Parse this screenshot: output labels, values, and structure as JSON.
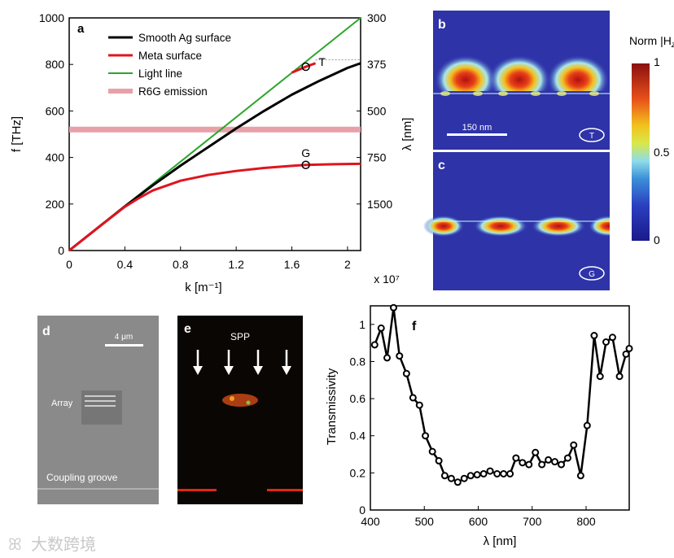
{
  "chart_data": [
    {
      "panel": "a",
      "type": "line",
      "xlabel": "k [m⁻¹]",
      "x_multiplier": "x 10⁷",
      "ylabel": "f [THz]",
      "ylabel_right": "λ [nm]",
      "xlim": [
        0,
        2.094
      ],
      "ylim": [
        0,
        1000
      ],
      "xticks": [
        "0",
        "0.4",
        "0.8",
        "1.2",
        "1.6",
        "2"
      ],
      "xtick_values": [
        0,
        0.4,
        0.8,
        1.2,
        1.6,
        2.0
      ],
      "yticks": [
        "0",
        "200",
        "400",
        "600",
        "800",
        "1000"
      ],
      "ytick_values": [
        0,
        200,
        400,
        600,
        800,
        1000
      ],
      "right_ticks": [
        "300",
        "375",
        "500",
        "750",
        "1500"
      ],
      "right_tick_values": [
        1000,
        800,
        600,
        400,
        200
      ],
      "legend_position": "top-left",
      "series": [
        {
          "name": "Smooth Ag surface",
          "color": "#000000",
          "x": [
            0,
            0.2,
            0.4,
            0.6,
            0.8,
            1.0,
            1.2,
            1.4,
            1.6,
            1.8,
            2.0,
            2.094
          ],
          "y": [
            0,
            95,
            190,
            280,
            365,
            445,
            525,
            600,
            670,
            730,
            785,
            805
          ]
        },
        {
          "name": "Meta surface",
          "color": "#e0141e",
          "x": [
            0,
            0.2,
            0.4,
            0.5,
            0.6,
            0.8,
            1.0,
            1.2,
            1.4,
            1.6,
            1.7,
            1.9,
            2.094
          ],
          "y": [
            0,
            95,
            188,
            225,
            258,
            300,
            325,
            342,
            355,
            364,
            368,
            371,
            373
          ]
        },
        {
          "name": "Light line",
          "color": "#2aa52a",
          "x": [
            0,
            2.094
          ],
          "y": [
            0,
            1000
          ]
        },
        {
          "name": "R6G emission",
          "color": "#e8a0a8",
          "x": [
            0,
            2.094
          ],
          "y": [
            520,
            520
          ]
        }
      ],
      "meta_upper_branch": {
        "x": [
          1.6,
          1.7,
          1.77
        ],
        "y": [
          765,
          790,
          805
        ]
      },
      "annotations": [
        {
          "label": "T",
          "x": 1.7,
          "y": 790
        },
        {
          "label": "G",
          "x": 1.7,
          "y": 368
        }
      ],
      "panel_label": "a"
    },
    {
      "panel": "f",
      "type": "line",
      "xlabel": "λ [nm]",
      "ylabel": "Transmissivity",
      "xlim": [
        400,
        880
      ],
      "ylim": [
        0,
        1.1
      ],
      "xticks": [
        "400",
        "500",
        "600",
        "700",
        "800"
      ],
      "xtick_values": [
        400,
        500,
        600,
        700,
        800
      ],
      "yticks": [
        "0",
        "0.2",
        "0.4",
        "0.6",
        "0.8",
        "1"
      ],
      "ytick_values": [
        0,
        0.2,
        0.4,
        0.6,
        0.8,
        1.0
      ],
      "x": [
        408,
        420,
        431,
        443,
        454,
        467,
        479,
        491,
        502,
        515,
        527,
        538,
        550,
        562,
        574,
        586,
        598,
        610,
        622,
        635,
        647,
        659,
        670,
        682,
        694,
        706,
        718,
        730,
        742,
        754,
        766,
        777,
        790,
        802,
        815,
        826,
        837,
        849,
        862,
        874,
        880
      ],
      "y": [
        0.89,
        0.98,
        0.82,
        1.09,
        0.83,
        0.735,
        0.605,
        0.565,
        0.4,
        0.315,
        0.265,
        0.185,
        0.17,
        0.15,
        0.17,
        0.185,
        0.19,
        0.195,
        0.21,
        0.195,
        0.195,
        0.195,
        0.28,
        0.255,
        0.245,
        0.31,
        0.245,
        0.27,
        0.26,
        0.245,
        0.28,
        0.35,
        0.185,
        0.455,
        0.94,
        0.72,
        0.905,
        0.93,
        0.72,
        0.84,
        0.87
      ],
      "panel_label": "f"
    }
  ],
  "field_maps": {
    "b_label": "b",
    "c_label": "c",
    "scale_bar": "150 nm",
    "b_mode": "T",
    "c_mode": "G",
    "colorbar_title": "Norm |H",
    "colorbar_title_sub": "z",
    "colorbar_title_end": "|",
    "colorbar_ticks": [
      "1",
      "0.5",
      "0"
    ],
    "colorbar_tick_values": [
      1,
      0.5,
      0
    ]
  },
  "micrographs": {
    "d_label": "d",
    "d_scale_bar": "4 μm",
    "d_array_label": "Array",
    "d_groove_label": "Coupling groove",
    "e_label": "e",
    "e_spp_label": "SPP"
  },
  "watermark": "大数跨境"
}
